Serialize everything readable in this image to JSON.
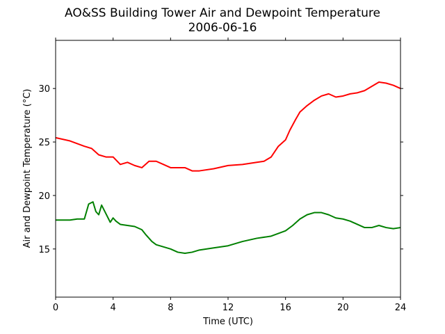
{
  "chart_data": {
    "type": "line",
    "title": "AO&SS Building Tower Air and Dewpoint Temperature",
    "subtitle": "2006-06-16",
    "xlabel": "Time (UTC)",
    "ylabel": "Air and Dewpoint Temperature (°C)",
    "xlim": [
      0,
      24
    ],
    "ylim": [
      10.5,
      34.5
    ],
    "xticks": [
      0,
      4,
      8,
      12,
      16,
      20,
      24
    ],
    "yticks": [
      15,
      20,
      25,
      30
    ],
    "grid": false,
    "series": [
      {
        "color": "#ff0000",
        "x": [
          0,
          1,
          2,
          2.5,
          3,
          3.5,
          4,
          4.5,
          5,
          5.5,
          6,
          6.5,
          7,
          7.5,
          8,
          8.5,
          9,
          9.5,
          10,
          11,
          12,
          13,
          14,
          14.5,
          15,
          15.5,
          16,
          16.3,
          16.7,
          17,
          17.5,
          18,
          18.5,
          19,
          19.5,
          20,
          20.5,
          21,
          21.5,
          22,
          22.5,
          23,
          23.5,
          24
        ],
        "values": [
          25.4,
          25.1,
          24.6,
          24.4,
          23.8,
          23.6,
          23.6,
          22.9,
          23.1,
          22.8,
          22.6,
          23.2,
          23.2,
          22.9,
          22.6,
          22.6,
          22.6,
          22.3,
          22.3,
          22.5,
          22.8,
          22.9,
          23.1,
          23.2,
          23.6,
          24.6,
          25.2,
          26.1,
          27.1,
          27.8,
          28.4,
          28.9,
          29.3,
          29.5,
          29.2,
          29.3,
          29.5,
          29.6,
          29.8,
          30.2,
          30.6,
          30.5,
          30.3,
          30.0
        ]
      },
      {
        "color": "#008000",
        "x": [
          0,
          1,
          1.5,
          2,
          2.3,
          2.6,
          2.8,
          3,
          3.2,
          3.5,
          3.8,
          4,
          4.2,
          4.5,
          5,
          5.5,
          6,
          6.3,
          6.7,
          7,
          8,
          8.5,
          9,
          9.5,
          10,
          11,
          12,
          13,
          14,
          15,
          16,
          16.5,
          17,
          17.5,
          18,
          18.5,
          19,
          19.5,
          20,
          20.5,
          21,
          21.5,
          22,
          22.5,
          23,
          23.5,
          24
        ],
        "values": [
          17.7,
          17.7,
          17.8,
          17.8,
          19.2,
          19.4,
          18.5,
          18.2,
          19.1,
          18.3,
          17.5,
          17.9,
          17.6,
          17.3,
          17.2,
          17.1,
          16.8,
          16.3,
          15.7,
          15.4,
          15.0,
          14.7,
          14.6,
          14.7,
          14.9,
          15.1,
          15.3,
          15.7,
          16.0,
          16.2,
          16.7,
          17.2,
          17.8,
          18.2,
          18.4,
          18.4,
          18.2,
          17.9,
          17.8,
          17.6,
          17.3,
          17.0,
          17.0,
          17.2,
          17.0,
          16.9,
          17.0
        ]
      }
    ]
  }
}
